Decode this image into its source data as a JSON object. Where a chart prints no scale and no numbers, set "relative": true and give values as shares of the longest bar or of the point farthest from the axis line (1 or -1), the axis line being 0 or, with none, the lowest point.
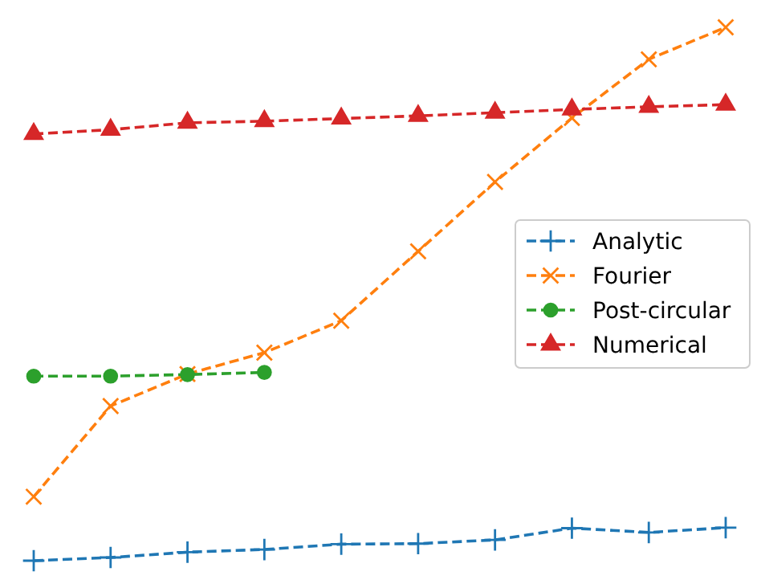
{
  "chart_data": {
    "type": "line",
    "relative": true,
    "categories": [
      null,
      null,
      null,
      null,
      null,
      null,
      null,
      null,
      null,
      null
    ],
    "series": [
      {
        "name": "Analytic",
        "color": "#1f77b4",
        "marker": "plus",
        "values": [
          0,
          0.006,
          0.016,
          0.021,
          0.031,
          0.032,
          0.039,
          0.061,
          0.053,
          0.062
        ]
      },
      {
        "name": "Fourier",
        "color": "#ff7f0e",
        "marker": "cross",
        "values": [
          0.12,
          0.29,
          0.35,
          0.39,
          0.45,
          0.58,
          0.71,
          0.83,
          0.94,
          1
        ]
      },
      {
        "name": "Post-circular",
        "color": "#2ca02c",
        "marker": "circle",
        "values": [
          0.346,
          0.346,
          0.349,
          0.353,
          null,
          null,
          null,
          null,
          null,
          null
        ]
      },
      {
        "name": "Numerical",
        "color": "#d62728",
        "marker": "triangle",
        "values": [
          0.8,
          0.808,
          0.821,
          0.824,
          0.829,
          0.834,
          0.84,
          0.846,
          0.851,
          0.855
        ]
      }
    ],
    "line_style": "dashed",
    "legend": "right"
  }
}
